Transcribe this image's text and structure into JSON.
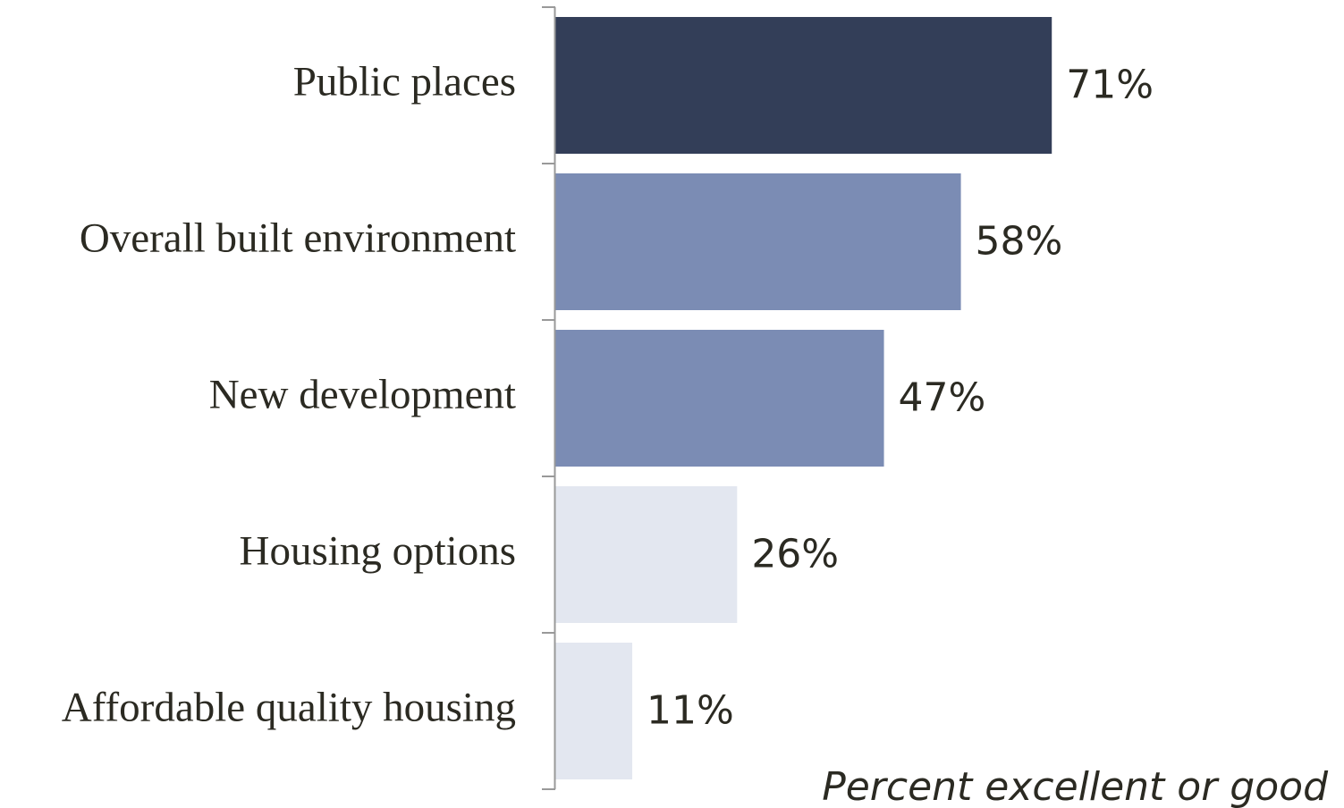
{
  "chart_data": {
    "type": "hbar",
    "categories": [
      "Public places",
      "Overall built environment",
      "New development",
      "Housing options",
      "Affordable quality housing"
    ],
    "values": [
      71,
      58,
      47,
      26,
      11
    ],
    "value_labels": [
      "71%",
      "58%",
      "47%",
      "26%",
      "11%"
    ],
    "colors": [
      "#333e58",
      "#7b8cb4",
      "#7b8cb4",
      "#e3e7f0",
      "#e3e7f0"
    ],
    "xlabel": "Percent excellent or good",
    "xlim": [
      0,
      100
    ]
  }
}
